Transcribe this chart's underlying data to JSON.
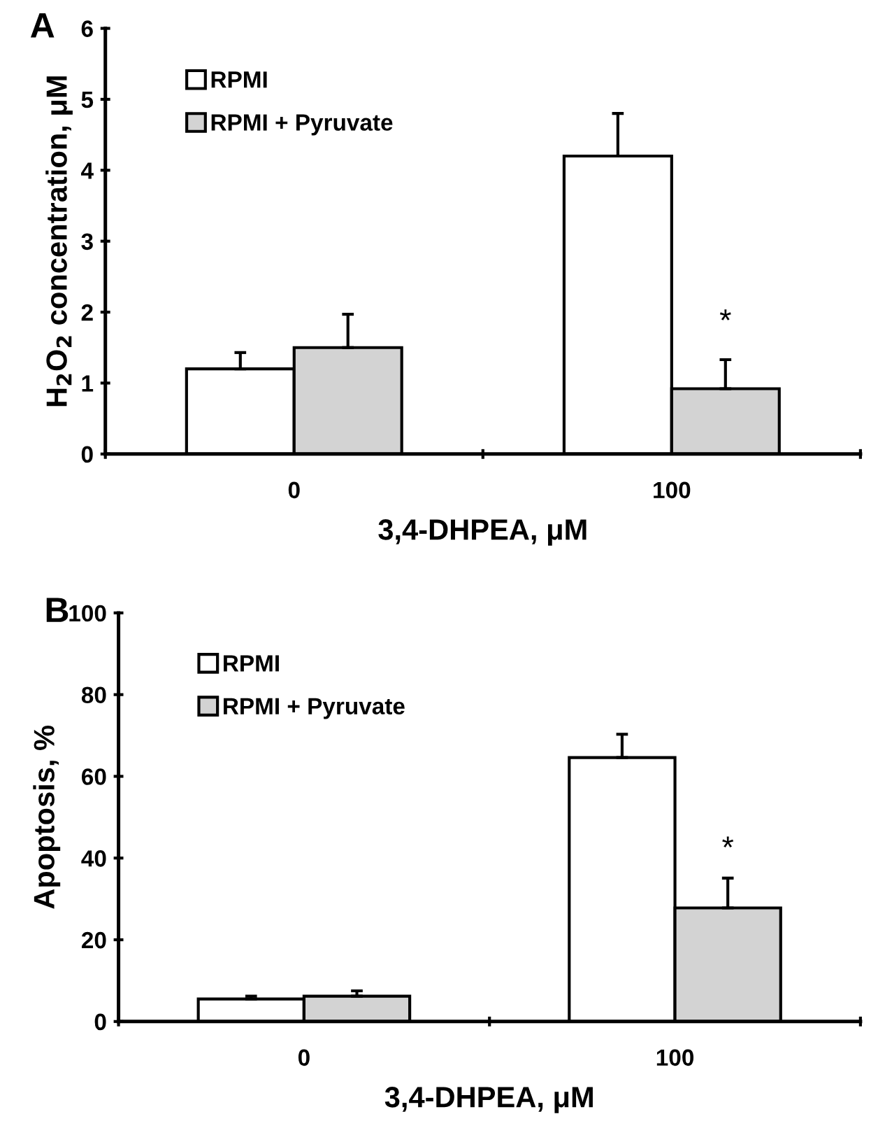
{
  "chart_data": [
    {
      "type": "bar",
      "categories": [
        "0",
        "100"
      ],
      "xlabel": "3,4-DHPEA, μM",
      "ylabel": "H$_{2}$O$_{2}$ concentration, μM",
      "ylim": [
        0,
        6
      ],
      "yticks": [
        0,
        1,
        2,
        3,
        4,
        5,
        6
      ],
      "legend": "top left",
      "grid": false,
      "series": [
        {
          "name": "RPMI",
          "color": "#ffffff",
          "values": [
            1.2,
            4.2
          ],
          "errors": [
            [
              1.2,
              1.43
            ],
            [
              4.2,
              4.8
            ]
          ]
        },
        {
          "name": "RPMI + Pyruvate",
          "color": "#d3d3d3",
          "values": [
            1.5,
            0.92
          ],
          "errors": [
            [
              1.5,
              1.97
            ],
            [
              0.92,
              1.33
            ]
          ]
        }
      ],
      "annotations": [
        "A",
        {
          "text": "*",
          "x": "100",
          "y": 1.85
        }
      ]
    },
    {
      "type": "bar",
      "categories": [
        "0",
        "100"
      ],
      "xlabel": "3,4-DHPEA, μM",
      "ylabel": "Apoptosis, %",
      "ylim": [
        0,
        100
      ],
      "yticks": [
        0,
        20,
        40,
        60,
        80,
        100
      ],
      "legend": "top left",
      "grid": false,
      "series": [
        {
          "name": "RPMI",
          "color": "#ffffff",
          "values": [
            5.5,
            64.6
          ],
          "errors": [
            [
              5.5,
              6.2
            ],
            [
              64.6,
              70.3
            ]
          ]
        },
        {
          "name": "RPMI + Pyruvate",
          "color": "#d3d3d3",
          "values": [
            6.2,
            27.8
          ],
          "errors": [
            [
              6.2,
              7.5
            ],
            [
              27.8,
              35.1
            ]
          ]
        }
      ],
      "annotations": [
        "B",
        {
          "text": "*",
          "x": "100",
          "y": 42
        }
      ]
    }
  ]
}
